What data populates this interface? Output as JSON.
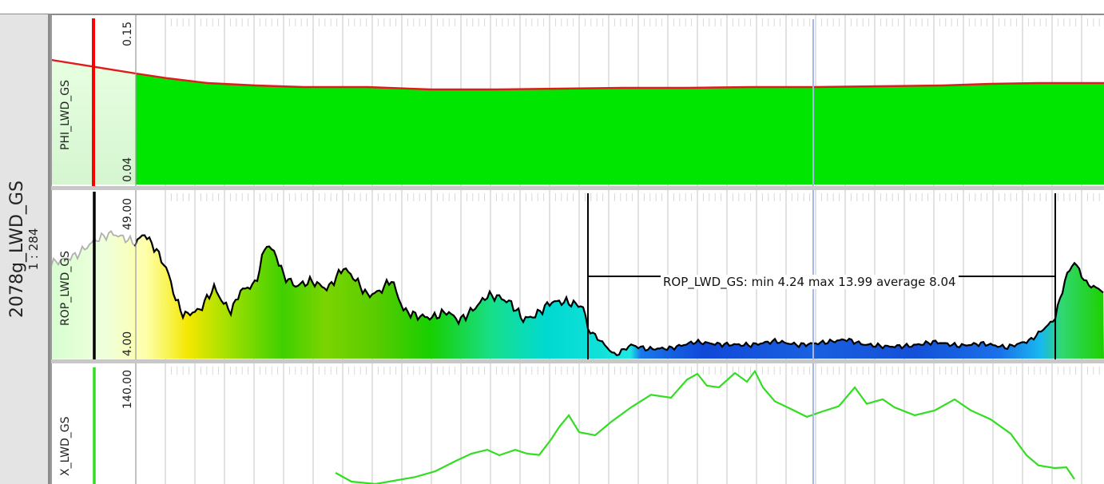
{
  "panel": {
    "well_name": "2078g_LWD_GS",
    "scale": "1 : 284"
  },
  "tracks": [
    {
      "label": "PHI_LWD_GS",
      "scale_max": "0.15",
      "scale_min": "0.04",
      "fill_color": "#00e600",
      "curve_color": "#e01b1b"
    },
    {
      "label": "ROP_LWD_GS",
      "scale_max": "49.00",
      "scale_min": "4.00"
    },
    {
      "label": "X_LWD_GS",
      "scale_max": "140.00",
      "curve_color": "#33dd22"
    }
  ],
  "annotation": {
    "text": "ROP_LWD_GS: min 4.24 max 13.99 average 8.04"
  },
  "colors": {
    "cursor_red": "#ff0000",
    "marker_blue": "#a6b8e8",
    "grid": "#c8c8c8"
  }
}
